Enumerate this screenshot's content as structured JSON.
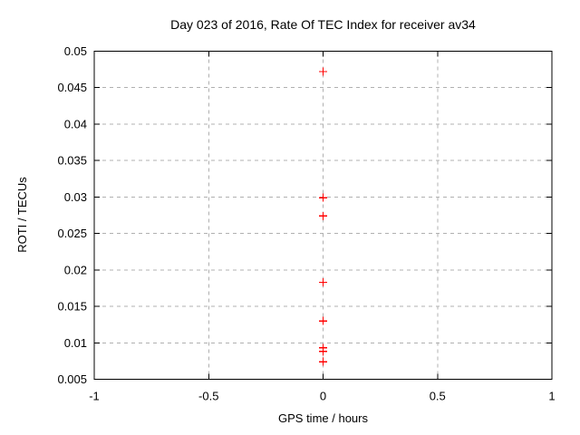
{
  "chart_data": {
    "type": "scatter",
    "title": "Day 023 of 2016, Rate Of TEC Index for receiver av34",
    "xlabel": "GPS time / hours",
    "ylabel": "ROTI / TECUs",
    "xlim": [
      -1,
      1
    ],
    "ylim": [
      0.005,
      0.05
    ],
    "x_ticks": [
      -1,
      -0.5,
      0,
      0.5,
      1
    ],
    "x_tick_labels": [
      "-1",
      "-0.5",
      "0",
      "0.5",
      "1"
    ],
    "y_ticks": [
      0.005,
      0.01,
      0.015,
      0.02,
      0.025,
      0.03,
      0.035,
      0.04,
      0.045,
      0.05
    ],
    "y_tick_labels": [
      "0.005",
      "0.01",
      "0.015",
      "0.02",
      "0.025",
      "0.03",
      "0.035",
      "0.04",
      "0.045",
      "0.05"
    ],
    "grid": true,
    "legend": "none",
    "series": [
      {
        "name": "ROTI",
        "marker": "plus",
        "color": "#ff0000",
        "points": [
          {
            "x": 0,
            "y": 0.0472
          },
          {
            "x": 0,
            "y": 0.0299
          },
          {
            "x": 0,
            "y": 0.0274
          },
          {
            "x": 0,
            "y": 0.0183
          },
          {
            "x": 0,
            "y": 0.013
          },
          {
            "x": 0,
            "y": 0.0093
          },
          {
            "x": 0,
            "y": 0.0088
          },
          {
            "x": 0,
            "y": 0.0074
          }
        ]
      }
    ]
  },
  "colors": {
    "background": "#ffffff",
    "axis": "#000000",
    "grid": "#b0b0b0",
    "marker": "#ff0000",
    "text": "#000000"
  }
}
